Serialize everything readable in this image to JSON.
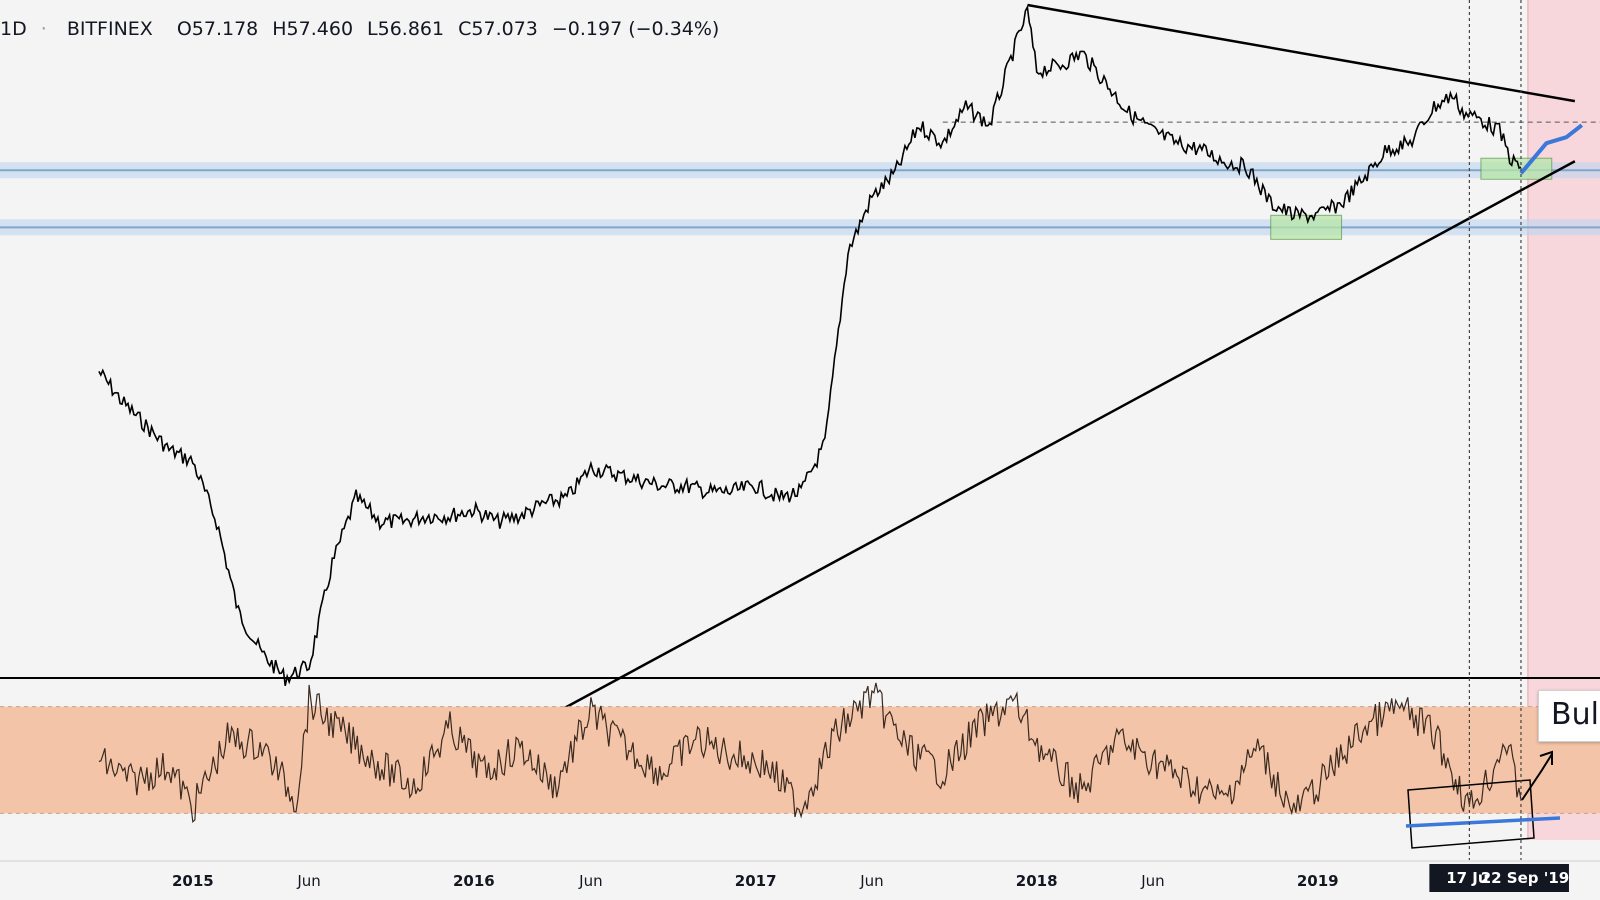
{
  "header": {
    "interval": "1D",
    "separator": "·",
    "exchange": "BITFINEX",
    "open": "O57.178",
    "high": "H57.460",
    "low": "L56.861",
    "close": "C57.073",
    "change": "−0.197 (−0.34%)"
  },
  "callout": {
    "text": "Bull"
  },
  "date_markers": [
    {
      "label": "17 Ju",
      "x": "2019-07-17"
    },
    {
      "label": "22 Sep '19",
      "x": "2019-09-22"
    }
  ],
  "colors": {
    "background": "#f4f4f4",
    "price_line": "#000000",
    "support_band": "#bcd4ec",
    "support_line": "#7fa6cc",
    "demand_box": "#b8e6a8",
    "forecast_zone": "#f8d7dc",
    "rsi_band": "#f3c4a8",
    "forecast_path": "#3a78d9"
  },
  "chart_data": [
    {
      "type": "line",
      "panel": "price",
      "x_ticks": [
        "2015",
        "Jun",
        "2016",
        "Jun",
        "2017",
        "Jun",
        "2018",
        "Jun",
        "2019"
      ],
      "x_tick_dates": [
        "2015-01-01",
        "2015-06-01",
        "2016-01-01",
        "2016-06-01",
        "2017-01-01",
        "2017-06-01",
        "2018-01-01",
        "2018-06-01",
        "2019-01-01"
      ],
      "series": [
        {
          "x": [
            "2014-09-01",
            "2014-10-01",
            "2014-11-01",
            "2014-12-01",
            "2015-01-01",
            "2015-02-01",
            "2015-03-01",
            "2015-04-01",
            "2015-05-01",
            "2015-06-01",
            "2015-07-01",
            "2015-08-01",
            "2015-09-01",
            "2015-10-01",
            "2015-11-01",
            "2015-12-01",
            "2016-01-01",
            "2016-02-01",
            "2016-03-01",
            "2016-04-01",
            "2016-05-01",
            "2016-06-01",
            "2016-07-01",
            "2016-08-01",
            "2016-09-01",
            "2016-10-01",
            "2016-11-01",
            "2016-12-01",
            "2017-01-01",
            "2017-02-01",
            "2017-03-01",
            "2017-04-01",
            "2017-05-01",
            "2017-06-01",
            "2017-07-01",
            "2017-08-01",
            "2017-09-01",
            "2017-10-01",
            "2017-11-01",
            "2017-12-01",
            "2017-12-20",
            "2018-01-01",
            "2018-02-01",
            "2018-03-01",
            "2018-04-01",
            "2018-05-01",
            "2018-06-01",
            "2018-07-01",
            "2018-08-01",
            "2018-09-01",
            "2018-10-01",
            "2018-11-01",
            "2018-12-01",
            "2019-01-01",
            "2019-02-01",
            "2019-03-01",
            "2019-04-01",
            "2019-05-01",
            "2019-06-01",
            "2019-06-25",
            "2019-07-10",
            "2019-08-01",
            "2019-08-25",
            "2019-09-10",
            "2019-09-22"
          ],
          "values": [
            0.87,
            0.82,
            0.78,
            0.74,
            0.72,
            0.62,
            0.47,
            0.4,
            0.36,
            0.38,
            0.55,
            0.66,
            0.62,
            0.62,
            0.63,
            0.63,
            0.64,
            0.62,
            0.63,
            0.65,
            0.66,
            0.71,
            0.7,
            0.69,
            0.68,
            0.68,
            0.67,
            0.67,
            0.68,
            0.66,
            0.67,
            0.75,
            1.07,
            1.16,
            1.2,
            1.28,
            1.25,
            1.31,
            1.28,
            1.4,
            1.47,
            1.37,
            1.38,
            1.4,
            1.35,
            1.3,
            1.27,
            1.25,
            1.24,
            1.22,
            1.21,
            1.15,
            1.13,
            1.13,
            1.15,
            1.19,
            1.24,
            1.25,
            1.31,
            1.33,
            1.3,
            1.29,
            1.27,
            1.22,
            1.21
          ]
        }
      ],
      "annotations": {
        "resistance_line": {
          "from": [
            "2017-12-20",
            1.48
          ],
          "to": [
            "2019-12-01",
            1.32
          ]
        },
        "rising_trendline": {
          "from": [
            "2016-02-01",
            0.25
          ],
          "to": [
            "2019-12-01",
            1.22
          ]
        },
        "support_levels": [
          1.205,
          1.11
        ],
        "dashed_level": 1.285,
        "demand_boxes": [
          {
            "x": [
              "2018-11-01",
              "2019-02-01"
            ],
            "y": [
              1.09,
              1.13
            ]
          },
          {
            "x": [
              "2019-08-01",
              "2019-11-01"
            ],
            "y": [
              1.19,
              1.225
            ]
          }
        ],
        "forecast_path": {
          "x": [
            "2019-09-22",
            "2019-10-25",
            "2019-11-20",
            "2019-12-10"
          ],
          "y": [
            1.2,
            1.25,
            1.26,
            1.28
          ]
        },
        "forecast_zone_start": "2019-10-01"
      }
    },
    {
      "type": "line",
      "panel": "oscillator",
      "band": [
        30,
        70
      ],
      "ylim": [
        20,
        80
      ],
      "series": [
        {
          "x": [
            "2014-09-01",
            "2014-10-15",
            "2014-12-01",
            "2015-01-01",
            "2015-02-15",
            "2015-04-01",
            "2015-05-15",
            "2015-06-01",
            "2015-07-15",
            "2015-09-01",
            "2015-10-15",
            "2015-12-01",
            "2016-01-15",
            "2016-03-01",
            "2016-04-15",
            "2016-06-01",
            "2016-07-15",
            "2016-09-01",
            "2016-10-15",
            "2016-12-01",
            "2017-01-15",
            "2017-03-01",
            "2017-04-15",
            "2017-06-01",
            "2017-07-15",
            "2017-09-01",
            "2017-10-15",
            "2017-12-01",
            "2018-01-15",
            "2018-03-01",
            "2018-04-15",
            "2018-06-01",
            "2018-07-15",
            "2018-09-01",
            "2018-10-15",
            "2018-12-01",
            "2019-01-15",
            "2019-03-01",
            "2019-04-15",
            "2019-06-01",
            "2019-07-17",
            "2019-08-15",
            "2019-09-01",
            "2019-09-22"
          ],
          "values": [
            50,
            42,
            48,
            32,
            58,
            55,
            35,
            72,
            60,
            48,
            40,
            62,
            45,
            55,
            40,
            68,
            55,
            45,
            58,
            52,
            48,
            32,
            60,
            75,
            55,
            45,
            62,
            72,
            50,
            38,
            58,
            50,
            42,
            35,
            55,
            30,
            45,
            62,
            70,
            60,
            32,
            45,
            58,
            35
          ]
        }
      ]
    }
  ]
}
